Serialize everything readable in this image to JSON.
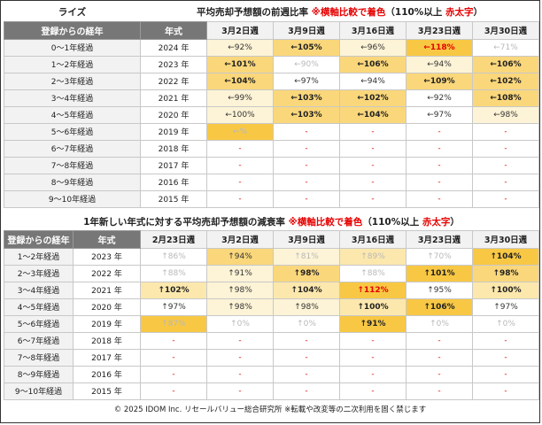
{
  "t1": {
    "label": "ライズ",
    "title_pre": "平均売却予想額の前週比率 ",
    "title_note": "※横軸比較で着色",
    "title_mid": "（110%以上 ",
    "title_red": "赤太字",
    "title_post": "）",
    "col_reg": "登録からの経年",
    "col_year": "年式",
    "weeks": [
      "3月2日週",
      "3月9日週",
      "3月16日週",
      "3月23日週",
      "3月30日週"
    ],
    "rows": [
      {
        "label": "0～1年経過",
        "year": "2024 年",
        "cells": [
          {
            "t": "←92%",
            "c": 1,
            "s": "mid"
          },
          {
            "t": "←105%",
            "c": 3,
            "s": "strong"
          },
          {
            "t": "←96%",
            "c": 1,
            "s": "mid"
          },
          {
            "t": "←118%",
            "c": 4,
            "s": "hot"
          },
          {
            "t": "←71%",
            "c": 0,
            "s": "weak"
          }
        ]
      },
      {
        "label": "1～2年経過",
        "year": "2023 年",
        "cells": [
          {
            "t": "←101%",
            "c": 3,
            "s": "strong"
          },
          {
            "t": "←90%",
            "c": 0,
            "s": "weak"
          },
          {
            "t": "←106%",
            "c": 3,
            "s": "strong"
          },
          {
            "t": "←94%",
            "c": 1,
            "s": "mid"
          },
          {
            "t": "←106%",
            "c": 3,
            "s": "strong"
          }
        ]
      },
      {
        "label": "2～3年経過",
        "year": "2022 年",
        "cells": [
          {
            "t": "←104%",
            "c": 3,
            "s": "strong"
          },
          {
            "t": "←97%",
            "c": 0,
            "s": "mid"
          },
          {
            "t": "←94%",
            "c": 0,
            "s": "mid"
          },
          {
            "t": "←109%",
            "c": 3,
            "s": "strong"
          },
          {
            "t": "←102%",
            "c": 3,
            "s": "strong"
          }
        ]
      },
      {
        "label": "3～4年経過",
        "year": "2021 年",
        "cells": [
          {
            "t": "←99%",
            "c": 1,
            "s": "mid"
          },
          {
            "t": "←103%",
            "c": 3,
            "s": "strong"
          },
          {
            "t": "←102%",
            "c": 3,
            "s": "strong"
          },
          {
            "t": "←92%",
            "c": 0,
            "s": "mid"
          },
          {
            "t": "←108%",
            "c": 3,
            "s": "strong"
          }
        ]
      },
      {
        "label": "4～5年経過",
        "year": "2020 年",
        "cells": [
          {
            "t": "←100%",
            "c": 1,
            "s": "mid"
          },
          {
            "t": "←103%",
            "c": 3,
            "s": "strong"
          },
          {
            "t": "←104%",
            "c": 3,
            "s": "strong"
          },
          {
            "t": "←97%",
            "c": 0,
            "s": "mid"
          },
          {
            "t": "←98%",
            "c": 1,
            "s": "mid"
          }
        ]
      },
      {
        "label": "5～6年経過",
        "year": "2019 年",
        "cells": [
          {
            "t": "←%",
            "c": 4,
            "s": "weak"
          },
          {
            "t": "-",
            "c": 0,
            "s": "dash"
          },
          {
            "t": "-",
            "c": 0,
            "s": "dash"
          },
          {
            "t": "-",
            "c": 0,
            "s": "dash"
          },
          {
            "t": "-",
            "c": 0,
            "s": "dash"
          }
        ]
      },
      {
        "label": "6～7年経過",
        "year": "2018 年",
        "cells": [
          {
            "t": "-",
            "c": 0,
            "s": "dash"
          },
          {
            "t": "-",
            "c": 0,
            "s": "dash"
          },
          {
            "t": "-",
            "c": 0,
            "s": "dash"
          },
          {
            "t": "-",
            "c": 0,
            "s": "dash"
          },
          {
            "t": "-",
            "c": 0,
            "s": "dash"
          }
        ]
      },
      {
        "label": "7～8年経過",
        "year": "2017 年",
        "cells": [
          {
            "t": "-",
            "c": 0,
            "s": "dash"
          },
          {
            "t": "-",
            "c": 0,
            "s": "dash"
          },
          {
            "t": "-",
            "c": 0,
            "s": "dash"
          },
          {
            "t": "-",
            "c": 0,
            "s": "dash"
          },
          {
            "t": "-",
            "c": 0,
            "s": "dash"
          }
        ]
      },
      {
        "label": "8～9年経過",
        "year": "2016 年",
        "cells": [
          {
            "t": "-",
            "c": 0,
            "s": "dash"
          },
          {
            "t": "-",
            "c": 0,
            "s": "dash"
          },
          {
            "t": "-",
            "c": 0,
            "s": "dash"
          },
          {
            "t": "-",
            "c": 0,
            "s": "dash"
          },
          {
            "t": "-",
            "c": 0,
            "s": "dash"
          }
        ]
      },
      {
        "label": "9～10年経過",
        "year": "2015 年",
        "cells": [
          {
            "t": "-",
            "c": 0,
            "s": "dash"
          },
          {
            "t": "-",
            "c": 0,
            "s": "dash"
          },
          {
            "t": "-",
            "c": 0,
            "s": "dash"
          },
          {
            "t": "-",
            "c": 0,
            "s": "dash"
          },
          {
            "t": "-",
            "c": 0,
            "s": "dash"
          }
        ]
      }
    ]
  },
  "t2": {
    "title_pre": "1年新しい年式に対する平均売却予想額の減衰率 ",
    "title_note": "※横軸比較で着色",
    "title_mid": "（110%以上 ",
    "title_red": "赤太字",
    "title_post": "）",
    "col_reg": "登録からの経年",
    "col_year": "年式",
    "weeks": [
      "2月23日週",
      "3月2日週",
      "3月9日週",
      "3月16日週",
      "3月23日週",
      "3月30日週"
    ],
    "rows": [
      {
        "label": "1～2年経過",
        "year": "2023 年",
        "cells": [
          {
            "t": "↑86%",
            "c": 0,
            "s": "weak"
          },
          {
            "t": "↑94%",
            "c": 3,
            "s": "mid"
          },
          {
            "t": "↑81%",
            "c": 1,
            "s": "weak"
          },
          {
            "t": "↑89%",
            "c": 2,
            "s": "weak"
          },
          {
            "t": "↑70%",
            "c": 0,
            "s": "weak"
          },
          {
            "t": "↑104%",
            "c": 4,
            "s": "strong"
          }
        ]
      },
      {
        "label": "2～3年経過",
        "year": "2022 年",
        "cells": [
          {
            "t": "↑88%",
            "c": 0,
            "s": "weak"
          },
          {
            "t": "↑91%",
            "c": 1,
            "s": "mid"
          },
          {
            "t": "↑98%",
            "c": 3,
            "s": "strong"
          },
          {
            "t": "↑88%",
            "c": 0,
            "s": "weak"
          },
          {
            "t": "↑101%",
            "c": 4,
            "s": "strong"
          },
          {
            "t": "↑98%",
            "c": 3,
            "s": "strong"
          }
        ]
      },
      {
        "label": "3～4年経過",
        "year": "2021 年",
        "cells": [
          {
            "t": "↑102%",
            "c": 2,
            "s": "strong"
          },
          {
            "t": "↑98%",
            "c": 1,
            "s": "mid"
          },
          {
            "t": "↑104%",
            "c": 2,
            "s": "strong"
          },
          {
            "t": "↑112%",
            "c": 4,
            "s": "hot"
          },
          {
            "t": "↑95%",
            "c": 0,
            "s": "mid"
          },
          {
            "t": "↑100%",
            "c": 2,
            "s": "strong"
          }
        ]
      },
      {
        "label": "4～5年経過",
        "year": "2020 年",
        "cells": [
          {
            "t": "↑97%",
            "c": 0,
            "s": "mid"
          },
          {
            "t": "↑98%",
            "c": 1,
            "s": "mid"
          },
          {
            "t": "↑98%",
            "c": 1,
            "s": "mid"
          },
          {
            "t": "↑100%",
            "c": 2,
            "s": "strong"
          },
          {
            "t": "↑106%",
            "c": 4,
            "s": "strong"
          },
          {
            "t": "↑97%",
            "c": 0,
            "s": "mid"
          }
        ]
      },
      {
        "label": "5～6年経過",
        "year": "2019 年",
        "cells": [
          {
            "t": "↑87%",
            "c": 4,
            "s": "weak"
          },
          {
            "t": "↑0%",
            "c": 0,
            "s": "weak"
          },
          {
            "t": "↑0%",
            "c": 0,
            "s": "weak"
          },
          {
            "t": "↑91%",
            "c": 4,
            "s": "strong"
          },
          {
            "t": "↑0%",
            "c": 0,
            "s": "weak"
          },
          {
            "t": "↑0%",
            "c": 0,
            "s": "weak"
          }
        ]
      },
      {
        "label": "6～7年経過",
        "year": "2018 年",
        "cells": [
          {
            "t": "-",
            "c": 0,
            "s": "dash"
          },
          {
            "t": "-",
            "c": 0,
            "s": "dash"
          },
          {
            "t": "-",
            "c": 0,
            "s": "dash"
          },
          {
            "t": "-",
            "c": 0,
            "s": "dash"
          },
          {
            "t": "-",
            "c": 0,
            "s": "dash"
          },
          {
            "t": "-",
            "c": 0,
            "s": "dash"
          }
        ]
      },
      {
        "label": "7～8年経過",
        "year": "2017 年",
        "cells": [
          {
            "t": "-",
            "c": 0,
            "s": "dash"
          },
          {
            "t": "-",
            "c": 0,
            "s": "dash"
          },
          {
            "t": "-",
            "c": 0,
            "s": "dash"
          },
          {
            "t": "-",
            "c": 0,
            "s": "dash"
          },
          {
            "t": "-",
            "c": 0,
            "s": "dash"
          },
          {
            "t": "-",
            "c": 0,
            "s": "dash"
          }
        ]
      },
      {
        "label": "8～9年経過",
        "year": "2016 年",
        "cells": [
          {
            "t": "-",
            "c": 0,
            "s": "dash"
          },
          {
            "t": "-",
            "c": 0,
            "s": "dash"
          },
          {
            "t": "-",
            "c": 0,
            "s": "dash"
          },
          {
            "t": "-",
            "c": 0,
            "s": "dash"
          },
          {
            "t": "-",
            "c": 0,
            "s": "dash"
          },
          {
            "t": "-",
            "c": 0,
            "s": "dash"
          }
        ]
      },
      {
        "label": "9～10年経過",
        "year": "2015 年",
        "cells": [
          {
            "t": "-",
            "c": 0,
            "s": "dash"
          },
          {
            "t": "-",
            "c": 0,
            "s": "dash"
          },
          {
            "t": "-",
            "c": 0,
            "s": "dash"
          },
          {
            "t": "-",
            "c": 0,
            "s": "dash"
          },
          {
            "t": "-",
            "c": 0,
            "s": "dash"
          },
          {
            "t": "-",
            "c": 0,
            "s": "dash"
          }
        ]
      }
    ]
  },
  "footer": "© 2025 IDOM Inc. リセールバリュー総合研究所 ※転載や改変等の二次利用を固く禁じます"
}
